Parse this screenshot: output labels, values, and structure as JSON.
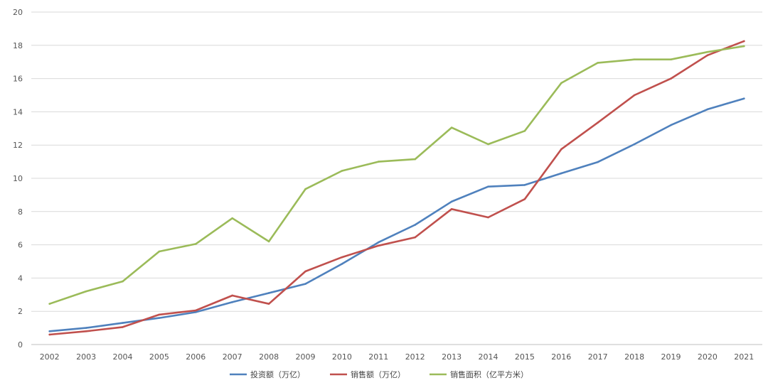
{
  "chart_data": {
    "type": "line",
    "title": "",
    "xlabel": "",
    "ylabel": "",
    "x": [
      "2002",
      "2003",
      "2004",
      "2005",
      "2006",
      "2007",
      "2008",
      "2009",
      "2010",
      "2011",
      "2012",
      "2013",
      "2014",
      "2015",
      "2016",
      "2017",
      "2018",
      "2019",
      "2020",
      "2021"
    ],
    "ylim": [
      0,
      20
    ],
    "yticks": [
      0,
      2,
      4,
      6,
      8,
      10,
      12,
      14,
      16,
      18,
      20
    ],
    "grid": "horizontal",
    "legend": "bottom",
    "series": [
      {
        "name": "投资额（万亿）",
        "color": "#4f81bd",
        "values": [
          0.8,
          1.0,
          1.3,
          1.6,
          1.95,
          2.55,
          3.1,
          3.65,
          4.85,
          6.15,
          7.2,
          8.6,
          9.5,
          9.6,
          10.3,
          10.98,
          12.05,
          13.2,
          14.15,
          14.8
        ]
      },
      {
        "name": "销售额（万亿）",
        "color": "#c0504d",
        "values": [
          0.6,
          0.8,
          1.05,
          1.8,
          2.05,
          2.95,
          2.45,
          4.4,
          5.25,
          5.95,
          6.45,
          8.15,
          7.65,
          8.75,
          11.75,
          13.35,
          15.0,
          16.0,
          17.4,
          18.25
        ]
      },
      {
        "name": "销售面积（亿平方米）",
        "color": "#9bbb59",
        "values": [
          2.45,
          3.2,
          3.8,
          5.6,
          6.05,
          7.6,
          6.2,
          9.35,
          10.45,
          11.0,
          11.15,
          13.05,
          12.05,
          12.85,
          15.73,
          16.95,
          17.15,
          17.15,
          17.6,
          17.95
        ]
      }
    ]
  }
}
